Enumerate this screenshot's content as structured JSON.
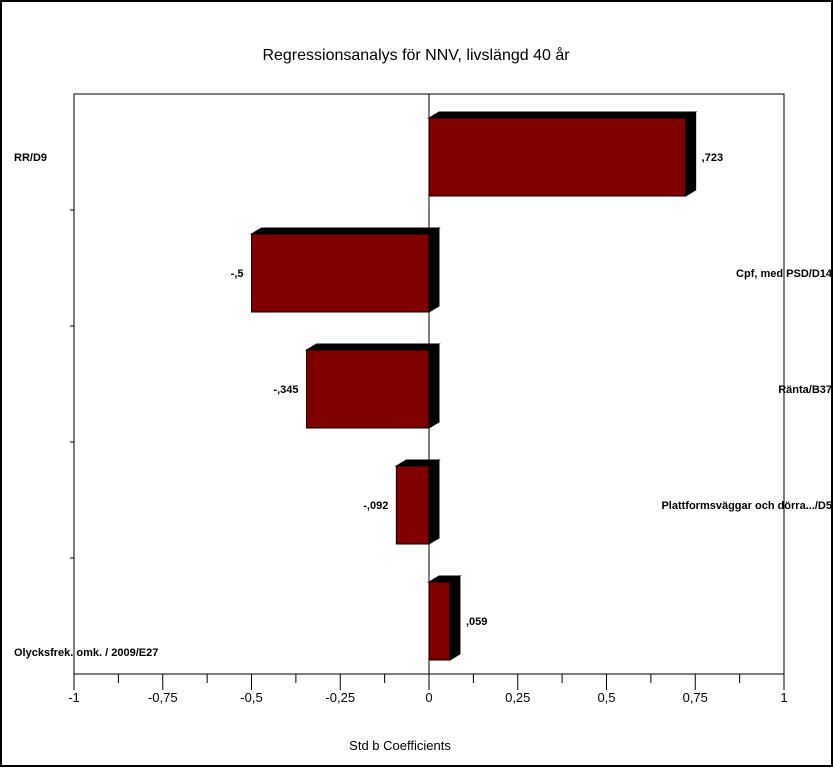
{
  "chart_data": {
    "type": "bar",
    "orientation": "horizontal",
    "title": "Regressionsanalys för NNV, livslängd 40 år",
    "xlabel": "Std b Coefficients",
    "ylabel": "",
    "xlim": [
      -1,
      1
    ],
    "x_ticks": [
      -1,
      -0.75,
      -0.5,
      -0.25,
      0,
      0.25,
      0.5,
      0.75,
      1
    ],
    "x_tick_labels": [
      "-1",
      "-0,75",
      "-0,5",
      "-0,25",
      "0",
      "0,25",
      "0,5",
      "0,75",
      "1"
    ],
    "categories": [
      "RR/D9",
      "Cpf, med PSD/D14",
      "Ränta/B37",
      "Plattformsväggar och dörra.../D5",
      "Olycksfrek. omk. / 2009/E27"
    ],
    "values": [
      0.723,
      -0.5,
      -0.345,
      -0.092,
      0.059
    ],
    "value_labels": [
      ",723",
      "-,5",
      "-,345",
      "-,092",
      ",059"
    ],
    "bar_color": "#800000",
    "bar_shadow_color": "#000000",
    "grid": false,
    "style": "3d"
  }
}
